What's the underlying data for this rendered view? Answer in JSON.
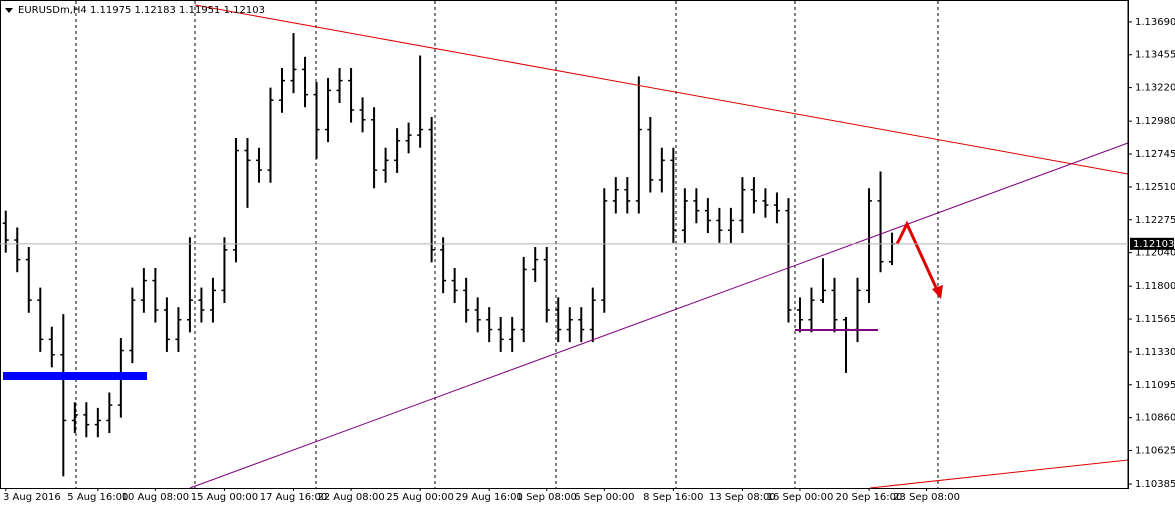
{
  "chart_data": {
    "type": "ohlc",
    "symbol": "EURUSDm,H4",
    "categories": [
      "3 Aug 2016",
      null,
      null,
      null,
      null,
      null,
      null,
      null,
      "5 Aug 16:00",
      null,
      null,
      null,
      null,
      "10 Aug 08:00",
      null,
      null,
      null,
      null,
      null,
      "15 Aug 00:00",
      null,
      null,
      null,
      null,
      null,
      "17 Aug 16:00",
      null,
      null,
      null,
      null,
      "22 Aug 08:00",
      null,
      null,
      null,
      null,
      null,
      "25 Aug 00:00",
      null,
      null,
      null,
      null,
      null,
      "29 Aug 16:00",
      null,
      null,
      null,
      null,
      "1 Sep 08:00",
      null,
      null,
      null,
      null,
      "6 Sep 00:00",
      null,
      null,
      null,
      null,
      null,
      "8 Sep 16:00",
      null,
      null,
      null,
      null,
      null,
      "13 Sep 08:00",
      null,
      null,
      null,
      null,
      "16 Sep 00:00",
      null,
      null,
      null,
      null,
      null,
      "20 Sep 16:00",
      null,
      null,
      null,
      null,
      "23 Sep 08:00"
    ],
    "open": [
      1.1225,
      1.1213,
      1.1199,
      1.117,
      1.1142,
      1.1131,
      1.1084,
      1.1088,
      1.1081,
      1.1084,
      1.1095,
      1.1134,
      1.117,
      1.1184,
      1.1163,
      1.1142,
      1.1156,
      1.117,
      1.1163,
      1.1177,
      1.1206,
      1.1277,
      1.127,
      1.1263,
      1.1313,
      1.1327,
      1.1335,
      1.1317,
      1.1292,
      1.132,
      1.1327,
      1.1306,
      1.1299,
      1.1263,
      1.127,
      1.1284,
      1.1288,
      1.1292,
      1.1206,
      1.1184,
      1.1177,
      1.1163,
      1.1156,
      1.1149,
      1.1142,
      1.1149,
      1.1192,
      1.1199,
      1.1163,
      1.1149,
      1.1156,
      1.1149,
      1.117,
      1.1241,
      1.1249,
      1.1241,
      1.1292,
      1.1256,
      1.127,
      1.122,
      1.1241,
      1.1234,
      1.1227,
      1.122,
      1.1227,
      1.1249,
      1.1241,
      1.1238,
      1.1234,
      1.1163,
      1.1156,
      1.117,
      1.1177,
      1.1156,
      1.1149,
      1.1177,
      1.1241,
      1.11975,
      null,
      null,
      null
    ],
    "high": [
      1.1234,
      1.1222,
      1.1208,
      1.1179,
      1.1151,
      1.116,
      1.1097,
      1.1097,
      1.1093,
      1.1104,
      1.1143,
      1.1179,
      1.1193,
      1.1193,
      1.1172,
      1.1165,
      1.1215,
      1.1179,
      1.1186,
      1.1215,
      1.1286,
      1.1286,
      1.1279,
      1.1322,
      1.1336,
      1.1361,
      1.1344,
      1.1326,
      1.1329,
      1.1336,
      1.1336,
      1.1315,
      1.1308,
      1.1279,
      1.1293,
      1.1297,
      1.1345,
      1.1301,
      1.1215,
      1.1193,
      1.1186,
      1.1172,
      1.1165,
      1.1158,
      1.1158,
      1.1201,
      1.1208,
      1.1208,
      1.1172,
      1.1165,
      1.1165,
      1.1179,
      1.125,
      1.1258,
      1.1258,
      1.133,
      1.1301,
      1.1279,
      1.1279,
      1.125,
      1.125,
      1.1243,
      1.1236,
      1.1236,
      1.1258,
      1.1258,
      1.125,
      1.1247,
      1.1243,
      1.1172,
      1.1179,
      1.12,
      1.1186,
      1.1158,
      1.1186,
      1.125,
      1.1262,
      1.12183,
      null,
      null,
      null
    ],
    "low": [
      1.1204,
      1.119,
      1.1161,
      1.1133,
      1.1122,
      1.1044,
      1.1075,
      1.1072,
      1.1072,
      1.1075,
      1.1086,
      1.1125,
      1.1161,
      1.1154,
      1.1133,
      1.1133,
      1.1147,
      1.1154,
      1.1154,
      1.1168,
      1.1197,
      1.1236,
      1.1254,
      1.1254,
      1.1304,
      1.1318,
      1.1308,
      1.1271,
      1.1283,
      1.1311,
      1.1297,
      1.129,
      1.125,
      1.1254,
      1.1261,
      1.1275,
      1.1279,
      1.1197,
      1.1175,
      1.1168,
      1.1154,
      1.1147,
      1.114,
      1.1133,
      1.1133,
      1.114,
      1.1183,
      1.1154,
      1.114,
      1.114,
      1.114,
      1.114,
      1.1161,
      1.1232,
      1.1232,
      1.1232,
      1.1247,
      1.1247,
      1.1211,
      1.1211,
      1.1225,
      1.1218,
      1.1211,
      1.1211,
      1.1218,
      1.1232,
      1.1229,
      1.1225,
      1.1154,
      1.1147,
      1.1147,
      1.1168,
      1.1147,
      1.1118,
      1.114,
      1.1168,
      1.119,
      1.11951,
      null,
      null,
      null
    ],
    "close": [
      1.1213,
      1.1199,
      1.117,
      1.1142,
      1.1131,
      1.1084,
      1.1088,
      1.1081,
      1.1084,
      1.1095,
      1.1134,
      1.117,
      1.1184,
      1.1163,
      1.1142,
      1.1156,
      1.117,
      1.1163,
      1.1177,
      1.1206,
      1.1277,
      1.127,
      1.1263,
      1.1313,
      1.1327,
      1.1335,
      1.1317,
      1.1292,
      1.132,
      1.1327,
      1.1306,
      1.1299,
      1.1263,
      1.127,
      1.1284,
      1.1288,
      1.1292,
      1.1206,
      1.1184,
      1.1177,
      1.1163,
      1.1156,
      1.1149,
      1.1142,
      1.1149,
      1.1192,
      1.1199,
      1.1163,
      1.1149,
      1.1156,
      1.1149,
      1.117,
      1.1241,
      1.1249,
      1.1241,
      1.1292,
      1.1256,
      1.127,
      1.122,
      1.1241,
      1.1234,
      1.1227,
      1.122,
      1.1227,
      1.1249,
      1.1241,
      1.1238,
      1.1234,
      1.1163,
      1.1156,
      1.117,
      1.1177,
      1.1156,
      1.1149,
      1.1177,
      1.1241,
      1.11975,
      1.12103,
      null,
      null,
      null
    ],
    "color": "#000000",
    "ylim": [
      1.10357,
      1.13825
    ],
    "yticks": [
      {
        "value": 1.1369,
        "label": "1.13690"
      },
      {
        "value": 1.13455,
        "label": "1.13455"
      },
      {
        "value": 1.1322,
        "label": "1.13220"
      },
      {
        "value": 1.1298,
        "label": "1.12980"
      },
      {
        "value": 1.12745,
        "label": "1.12745"
      },
      {
        "value": 1.1251,
        "label": "1.12510"
      },
      {
        "value": 1.12275,
        "label": "1.12275"
      },
      {
        "value": 1.1204,
        "label": "1.12040"
      },
      {
        "value": 1.118,
        "label": "1.11800"
      },
      {
        "value": 1.11565,
        "label": "1.11565"
      },
      {
        "value": 1.1133,
        "label": "1.11330"
      },
      {
        "value": 1.11095,
        "label": "1.11095"
      },
      {
        "value": 1.1086,
        "label": "1.10860"
      },
      {
        "value": 1.10625,
        "label": "1.10625"
      },
      {
        "value": 1.10385,
        "label": "1.10385"
      }
    ]
  }
}
